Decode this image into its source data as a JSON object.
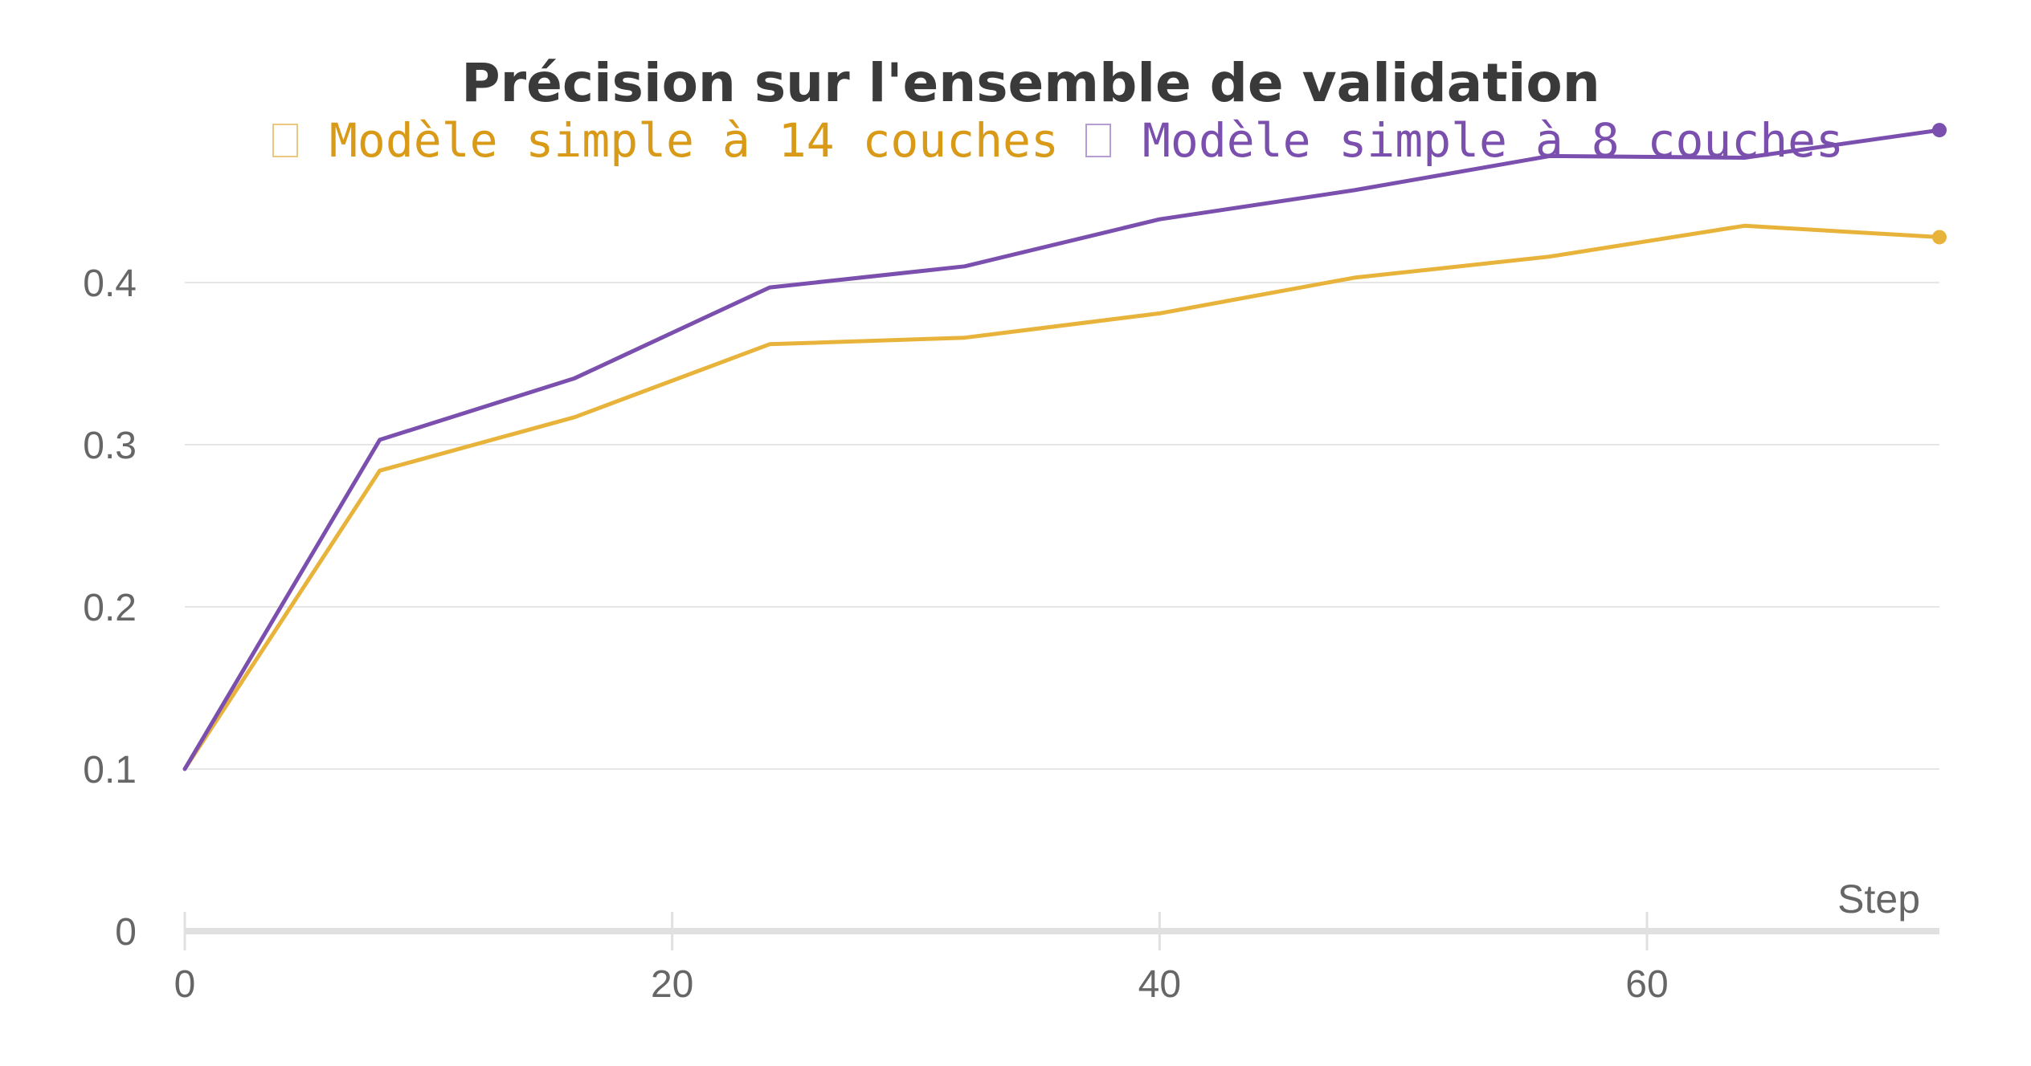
{
  "chart_data": {
    "type": "line",
    "title": "Précision sur l'ensemble de validation",
    "xlabel": "Step",
    "ylabel": "",
    "xlim": [
      0,
      72
    ],
    "ylim": [
      0,
      0.5
    ],
    "x_ticks": [
      0,
      20,
      40,
      60
    ],
    "y_ticks": [
      0,
      0.1,
      0.2,
      0.3,
      0.4
    ],
    "grid": true,
    "legend_position": "top",
    "series": [
      {
        "name": "Modèle simple à 14 couches",
        "color": "#e8b33a",
        "legend_color": "#d99a17",
        "x": [
          0,
          8,
          16,
          24,
          32,
          40,
          48,
          56,
          64,
          72
        ],
        "y": [
          0.1,
          0.284,
          0.317,
          0.362,
          0.366,
          0.381,
          0.403,
          0.416,
          0.435,
          0.428
        ]
      },
      {
        "name": "Modèle simple à 8 couches",
        "color": "#7b4fad",
        "legend_color": "#7b4fad",
        "x": [
          0,
          8,
          16,
          24,
          32,
          40,
          48,
          56,
          64,
          72
        ],
        "y": [
          0.1,
          0.303,
          0.341,
          0.397,
          0.41,
          0.439,
          0.457,
          0.478,
          0.477,
          0.494
        ]
      }
    ]
  }
}
